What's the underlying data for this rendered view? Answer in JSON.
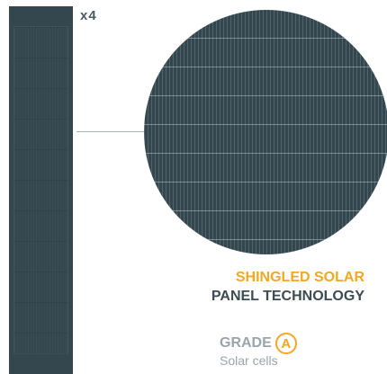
{
  "multiplier": "x4",
  "title": {
    "line1": "SHINGLED SOLAR",
    "line2": "PANEL TECHNOLOGY"
  },
  "grade": {
    "label": "GRADE",
    "value": "A",
    "subtitle": "Solar cells"
  },
  "colors": {
    "accent": "#f5a623",
    "panel": "#34474f",
    "text_dark": "#3d4b52",
    "text_muted": "#9aa5aa"
  }
}
